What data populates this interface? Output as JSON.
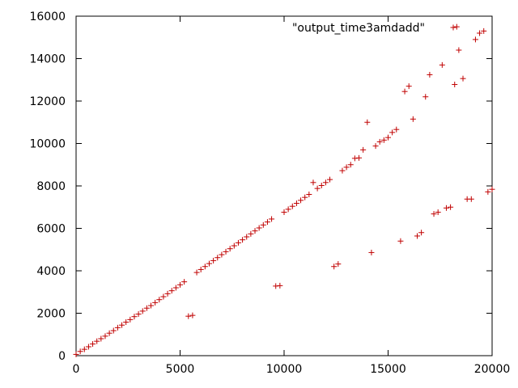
{
  "chart_data": {
    "type": "scatter",
    "title": "",
    "xlabel": "",
    "ylabel": "",
    "xlim": [
      0,
      20000
    ],
    "ylim": [
      0,
      16000
    ],
    "x_ticks": [
      "0",
      "5000",
      "10000",
      "15000",
      "20000"
    ],
    "y_ticks": [
      "0",
      "2000",
      "4000",
      "6000",
      "8000",
      "10000",
      "12000",
      "14000",
      "16000"
    ],
    "grid": false,
    "legend_position": "top-right",
    "series": [
      {
        "name": "\"output_time3amdadd\"",
        "color": "#c00000",
        "marker": "plus",
        "points": [
          [
            0,
            60
          ],
          [
            200,
            200
          ],
          [
            400,
            300
          ],
          [
            600,
            420
          ],
          [
            800,
            550
          ],
          [
            1000,
            680
          ],
          [
            1200,
            800
          ],
          [
            1400,
            920
          ],
          [
            1600,
            1060
          ],
          [
            1800,
            1180
          ],
          [
            2000,
            1320
          ],
          [
            2200,
            1440
          ],
          [
            2400,
            1580
          ],
          [
            2600,
            1700
          ],
          [
            2800,
            1840
          ],
          [
            3000,
            1960
          ],
          [
            3200,
            2100
          ],
          [
            3400,
            2240
          ],
          [
            3600,
            2360
          ],
          [
            3800,
            2500
          ],
          [
            4000,
            2640
          ],
          [
            4200,
            2780
          ],
          [
            4400,
            2920
          ],
          [
            4600,
            3060
          ],
          [
            4800,
            3200
          ],
          [
            5000,
            3340
          ],
          [
            5200,
            3480
          ],
          [
            5400,
            1860
          ],
          [
            5600,
            1900
          ],
          [
            5800,
            3920
          ],
          [
            6000,
            4060
          ],
          [
            6200,
            4200
          ],
          [
            6400,
            4340
          ],
          [
            6600,
            4480
          ],
          [
            6800,
            4620
          ],
          [
            7000,
            4760
          ],
          [
            7200,
            4900
          ],
          [
            7400,
            5040
          ],
          [
            7600,
            5180
          ],
          [
            7800,
            5320
          ],
          [
            8000,
            5460
          ],
          [
            8200,
            5600
          ],
          [
            8400,
            5740
          ],
          [
            8600,
            5880
          ],
          [
            8800,
            6020
          ],
          [
            9000,
            6160
          ],
          [
            9200,
            6300
          ],
          [
            9400,
            6440
          ],
          [
            9600,
            3280
          ],
          [
            9800,
            3300
          ],
          [
            10000,
            6760
          ],
          [
            10200,
            6900
          ],
          [
            10400,
            7040
          ],
          [
            10600,
            7180
          ],
          [
            10800,
            7320
          ],
          [
            11000,
            7460
          ],
          [
            11200,
            7600
          ],
          [
            11400,
            8160
          ],
          [
            11600,
            7880
          ],
          [
            11800,
            8020
          ],
          [
            12000,
            8160
          ],
          [
            12200,
            8300
          ],
          [
            12400,
            4200
          ],
          [
            12600,
            4320
          ],
          [
            12800,
            8720
          ],
          [
            13000,
            8880
          ],
          [
            13200,
            9000
          ],
          [
            13400,
            9300
          ],
          [
            13600,
            9320
          ],
          [
            13800,
            9700
          ],
          [
            14000,
            11000
          ],
          [
            14200,
            4860
          ],
          [
            14400,
            9880
          ],
          [
            14600,
            10080
          ],
          [
            14800,
            10160
          ],
          [
            15000,
            10280
          ],
          [
            15200,
            10520
          ],
          [
            15400,
            10660
          ],
          [
            15600,
            5400
          ],
          [
            15800,
            12450
          ],
          [
            16000,
            12700
          ],
          [
            16200,
            11150
          ],
          [
            16400,
            5640
          ],
          [
            16600,
            5800
          ],
          [
            16800,
            12200
          ],
          [
            17000,
            13240
          ],
          [
            17200,
            6680
          ],
          [
            17400,
            6760
          ],
          [
            17600,
            13700
          ],
          [
            17800,
            6960
          ],
          [
            18000,
            7000
          ],
          [
            18200,
            12780
          ],
          [
            18300,
            15500
          ],
          [
            18400,
            14400
          ],
          [
            18600,
            13060
          ],
          [
            18800,
            7380
          ],
          [
            19000,
            7380
          ],
          [
            19200,
            14900
          ],
          [
            19400,
            15200
          ],
          [
            19600,
            15300
          ],
          [
            19800,
            7720
          ],
          [
            20000,
            7840
          ]
        ]
      }
    ]
  }
}
